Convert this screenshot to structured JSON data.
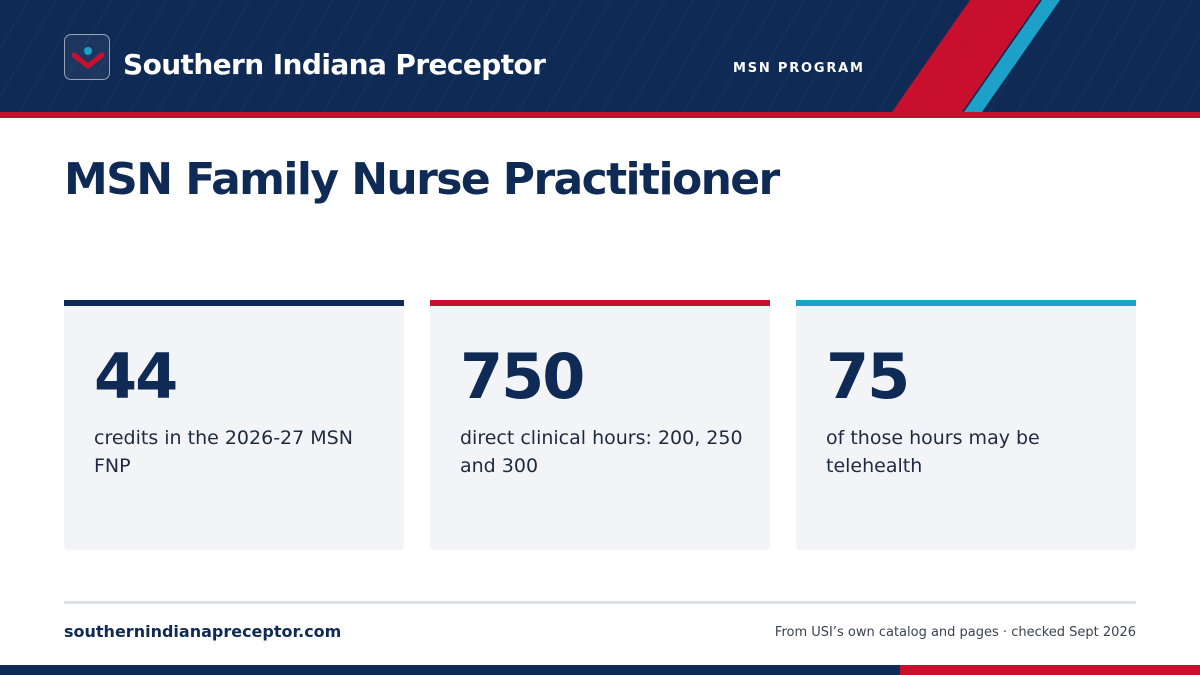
{
  "header": {
    "brand": "Southern Indiana Preceptor",
    "program_tag": "MSN PROGRAM",
    "logo_icon": "person-chevron-icon"
  },
  "page_title": "MSN Family Nurse Practitioner",
  "stats": [
    {
      "value": "44",
      "description": "credits in the 2026-27 MSN FNP",
      "accent": "#0e2a55"
    },
    {
      "value": "750",
      "description": "direct clinical hours: 200, 250 and 300",
      "accent": "#c8102e"
    },
    {
      "value": "75",
      "description": "of those hours may be telehealth",
      "accent": "#1da1c9"
    }
  ],
  "footer": {
    "site": "southernindianapreceptor.com",
    "source": "From USI’s own catalog and pages · checked Sept 2026"
  },
  "colors": {
    "navy": "#0e2a55",
    "red": "#c8102e",
    "teal": "#1da1c9",
    "card_bg": "#f3f4f8"
  }
}
